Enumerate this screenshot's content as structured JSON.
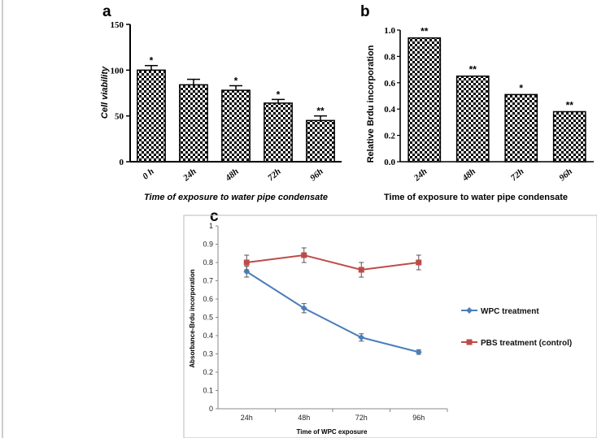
{
  "chart_data": [
    {
      "panel": "a",
      "type": "bar",
      "categories": [
        "0 h",
        "24h",
        "48h",
        "72h",
        "96h"
      ],
      "values": [
        100,
        84,
        78,
        64,
        45
      ],
      "errors": [
        5,
        6,
        5,
        4,
        5
      ],
      "significance": [
        "*",
        "",
        "*",
        "*",
        "**"
      ],
      "xlabel": "Time of exposure to water pipe condensate",
      "ylabel": "Cell viability",
      "ylim": [
        0,
        150
      ],
      "yticks": [
        "0",
        "50",
        "100",
        "150"
      ],
      "pattern": "checkerboard"
    },
    {
      "panel": "b",
      "type": "bar",
      "categories": [
        "24h",
        "48h",
        "72h",
        "96h"
      ],
      "values": [
        0.94,
        0.65,
        0.51,
        0.38
      ],
      "significance": [
        "**",
        "**",
        "*",
        "**"
      ],
      "xlabel": "Time of exposure to water pipe condensate",
      "ylabel": "Relative Brdu incorporation",
      "ylim": [
        0,
        1.0
      ],
      "yticks": [
        "0.0",
        "0.2",
        "0.4",
        "0.6",
        "0.8",
        "1.0"
      ],
      "pattern": "checkerboard"
    },
    {
      "panel": "c",
      "type": "line",
      "categories": [
        "24h",
        "48h",
        "72h",
        "96h"
      ],
      "series": [
        {
          "name": "WPC treatment",
          "values": [
            0.75,
            0.55,
            0.39,
            0.31
          ],
          "errors": [
            0.03,
            0.025,
            0.02,
            0.012
          ],
          "color": "#4a7ebb",
          "marker": "diamond"
        },
        {
          "name": "PBS treatment (control)",
          "values": [
            0.8,
            0.84,
            0.76,
            0.8
          ],
          "errors": [
            0.04,
            0.04,
            0.04,
            0.04
          ],
          "color": "#be4b48",
          "marker": "square"
        }
      ],
      "xlabel": "Time of WPC exposure",
      "ylabel": "Absorbance-Brdu incorporation",
      "ylim": [
        0,
        1
      ],
      "yticks": [
        "0",
        "0.1",
        "0.2",
        "0.3",
        "0.4",
        "0.5",
        "0.6",
        "0.7",
        "0.8",
        "0.9",
        "1"
      ],
      "legend": "right"
    }
  ]
}
